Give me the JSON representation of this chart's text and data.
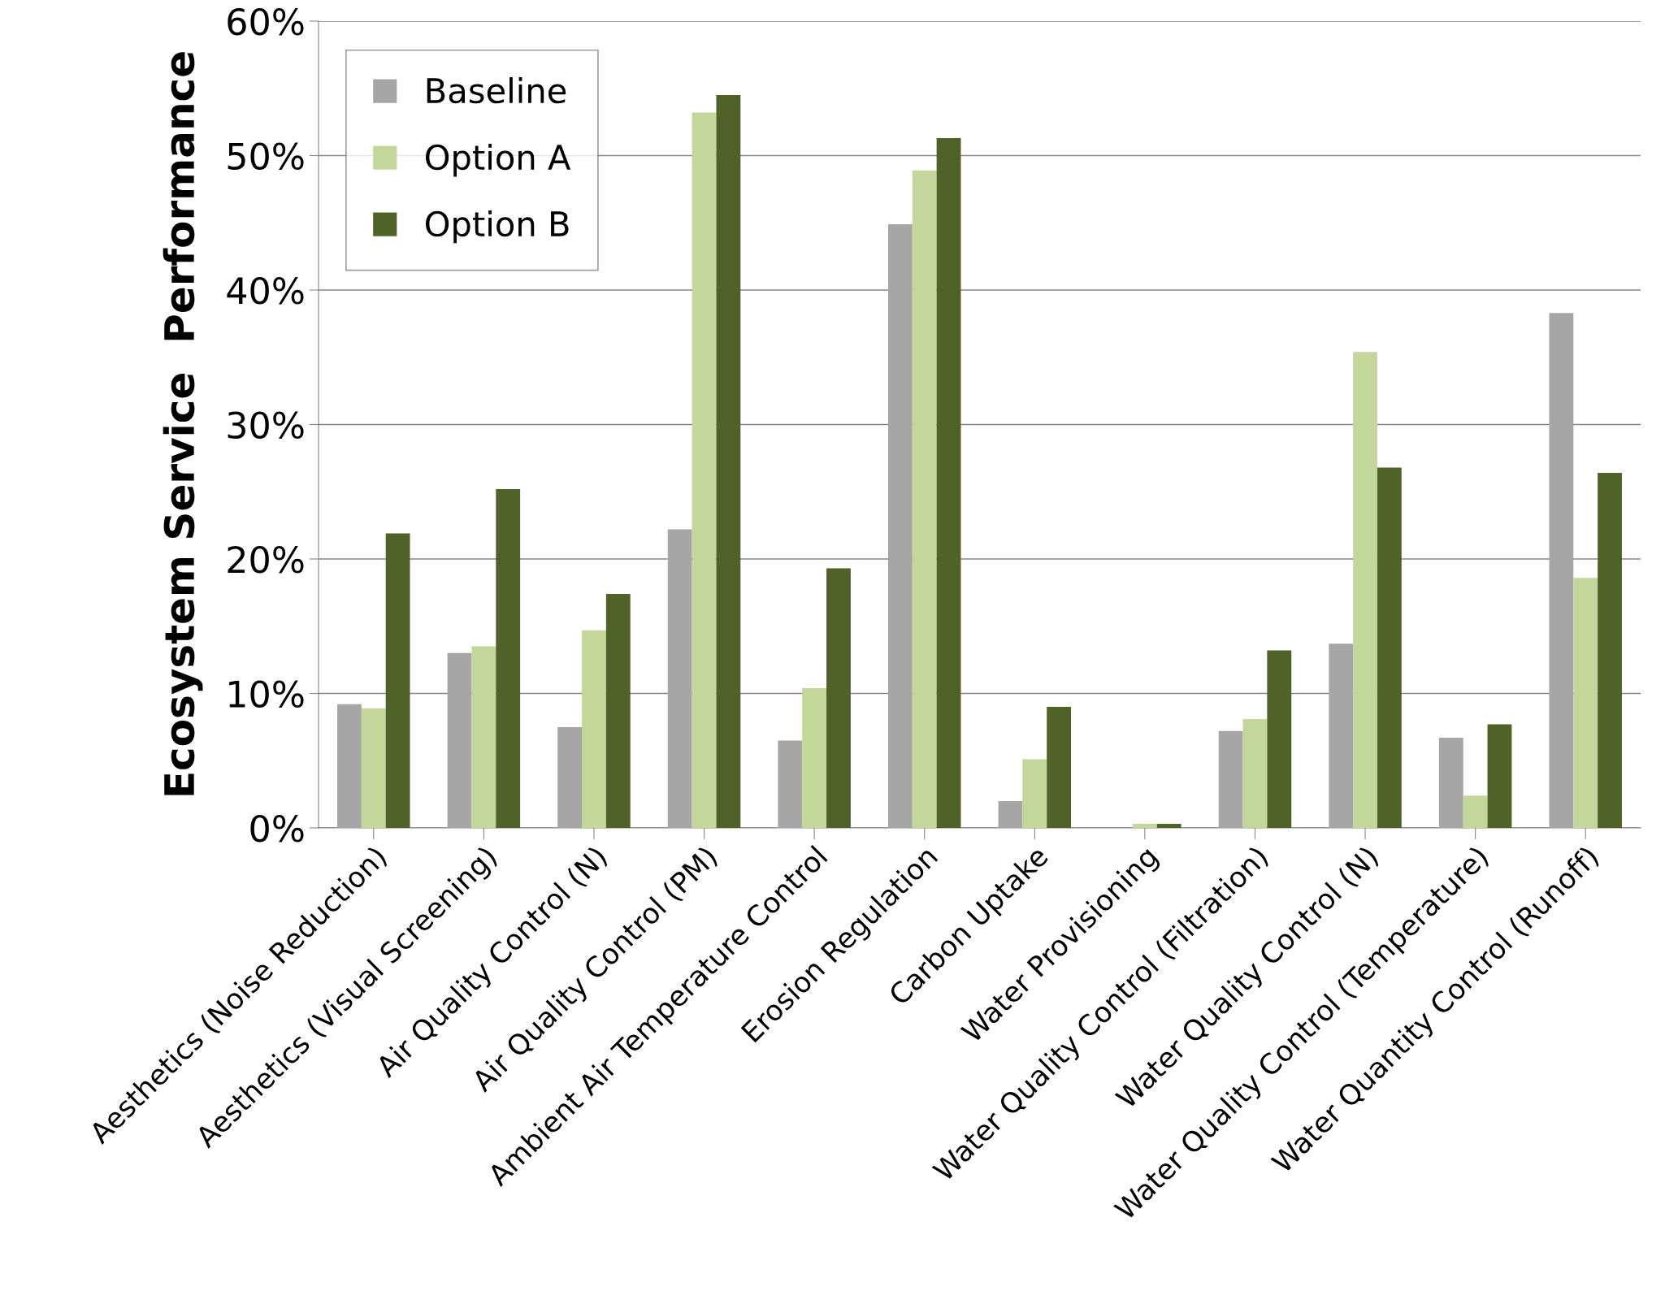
{
  "chart_data": {
    "type": "bar",
    "ylabel": "Ecosystem Service  Performance",
    "categories": [
      "Aesthetics (Noise Reduction)",
      "Aesthetics (Visual Screening)",
      "Air Quality Control (N)",
      "Air Quality Control (PM)",
      "Ambient Air Temperature Control",
      "Erosion Regulation",
      "Carbon Uptake",
      "Water Provisioning",
      "Water Quality Control (Filtration)",
      "Water Quality Control (N)",
      "Water Quality Control (Temperature)",
      "Water Quantity Control (Runoff)"
    ],
    "series": [
      {
        "name": "Baseline",
        "color": "#a6a6a6",
        "values": [
          9.2,
          13.0,
          7.5,
          22.2,
          6.5,
          44.9,
          2.0,
          0,
          7.2,
          13.7,
          6.7,
          38.3
        ]
      },
      {
        "name": "Option A",
        "color": "#c4d79b",
        "values": [
          8.9,
          13.5,
          14.7,
          53.2,
          10.4,
          48.9,
          5.1,
          0.3,
          8.1,
          35.4,
          2.4,
          18.6
        ]
      },
      {
        "name": "Option B",
        "color": "#4f6228",
        "values": [
          21.9,
          25.2,
          17.4,
          54.5,
          19.3,
          51.3,
          9.0,
          0.3,
          13.2,
          26.8,
          7.7,
          26.4
        ]
      }
    ],
    "ylim": [
      0,
      60
    ],
    "yticks": [
      {
        "value": 0,
        "label": "0%"
      },
      {
        "value": 10,
        "label": "10%"
      },
      {
        "value": 20,
        "label": "20%"
      },
      {
        "value": 30,
        "label": "30%"
      },
      {
        "value": 40,
        "label": "40%"
      },
      {
        "value": 50,
        "label": "50%"
      },
      {
        "value": 60,
        "label": "60%"
      }
    ],
    "grid": "y",
    "legend": "top left"
  }
}
